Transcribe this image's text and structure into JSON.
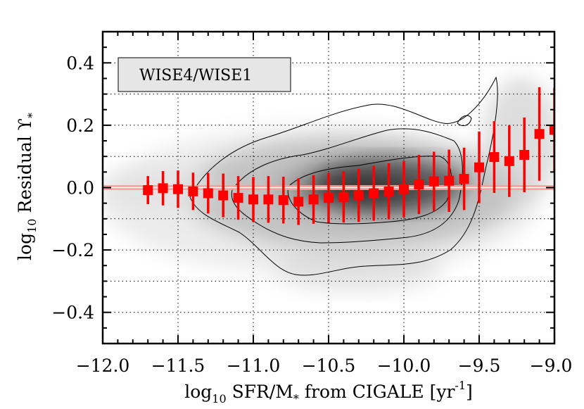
{
  "chart_data": {
    "type": "scatter",
    "xlabel": {
      "prefix": "log",
      "sub": "10",
      "main": " SFR/M",
      "star": "*",
      "tail": " from CIGALE [yr",
      "sup": "-1",
      "close": "]"
    },
    "ylabel": {
      "prefix": "log",
      "sub": "10",
      "main": " Residual ϒ",
      "star": "*"
    },
    "xlim": [
      -12.0,
      -9.0
    ],
    "ylim": [
      -0.5,
      0.5
    ],
    "xticks": [
      -12.0,
      -11.5,
      -11.0,
      -10.5,
      -10.0,
      -9.5,
      -9.0
    ],
    "xtick_labels": [
      "−12.0",
      "−11.5",
      "−11.0",
      "−10.5",
      "−10.0",
      "−9.5",
      "−9.0"
    ],
    "yticks": [
      -0.4,
      -0.2,
      0.0,
      0.2,
      0.4
    ],
    "ytick_labels": [
      "−0.4",
      "−0.2",
      "0.0",
      "0.2",
      "0.4"
    ],
    "grid": true,
    "legend": {
      "label": "WISE4/WISE1",
      "placement": "top-left"
    },
    "reference_line": {
      "y": 0.0,
      "color": "#ff9a9a"
    },
    "series": [
      {
        "marker_color": "#ff0000",
        "x": [
          -11.7,
          -11.6,
          -11.5,
          -11.4,
          -11.3,
          -11.2,
          -11.1,
          -11.0,
          -10.9,
          -10.8,
          -10.7,
          -10.6,
          -10.5,
          -10.4,
          -10.3,
          -10.2,
          -10.1,
          -10.0,
          -9.9,
          -9.8,
          -9.7,
          -9.6,
          -9.5,
          -9.4,
          -9.3,
          -9.2,
          -9.1,
          -9.0
        ],
        "y": [
          -0.008,
          -0.002,
          -0.005,
          -0.012,
          -0.018,
          -0.025,
          -0.033,
          -0.038,
          -0.038,
          -0.04,
          -0.045,
          -0.038,
          -0.033,
          -0.03,
          -0.025,
          -0.018,
          -0.012,
          -0.005,
          0.01,
          0.02,
          0.022,
          0.028,
          0.065,
          0.098,
          0.085,
          0.105,
          0.172,
          0.185
        ],
        "y_err": [
          0.045,
          0.055,
          0.06,
          0.06,
          0.065,
          0.07,
          0.07,
          0.072,
          0.075,
          0.075,
          0.075,
          0.078,
          0.08,
          0.082,
          0.085,
          0.088,
          0.09,
          0.09,
          0.095,
          0.095,
          0.1,
          0.1,
          0.115,
          0.115,
          0.115,
          0.12,
          0.15,
          0.135
        ]
      }
    ]
  }
}
